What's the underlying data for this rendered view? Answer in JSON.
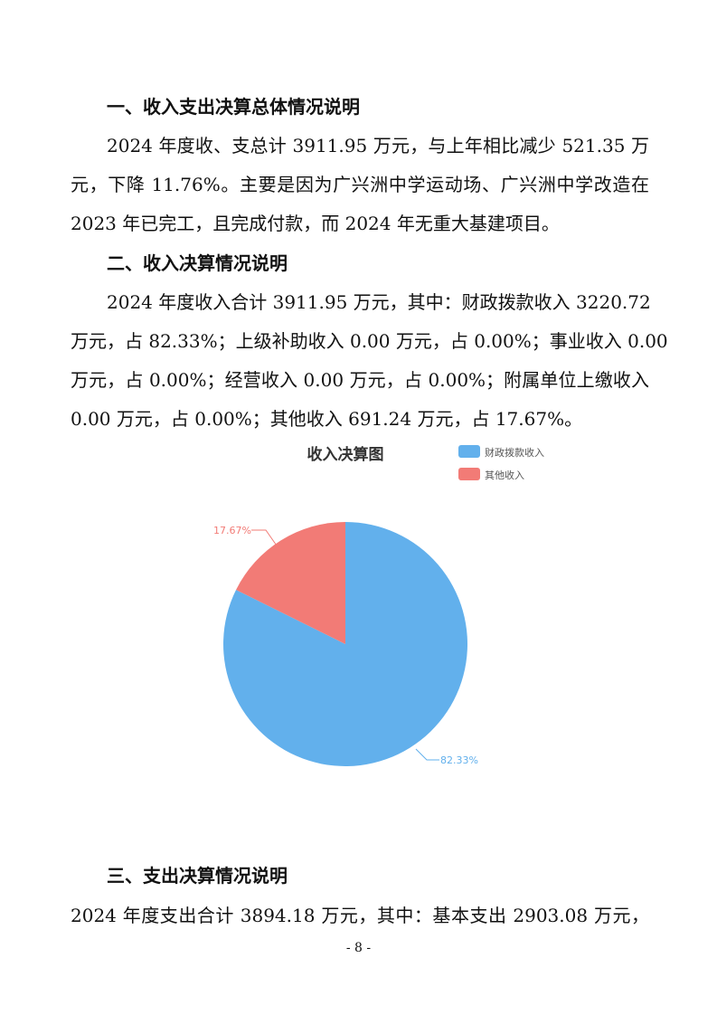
{
  "section1": {
    "heading": "一、收入支出决算总体情况说明",
    "lines": [
      "2024 年度收、支总计 3911.95 万元，与上年相比减少 521.35 万",
      "元，下降 11.76%。主要是因为广兴洲中学运动场、广兴洲中学改造在",
      "2023 年已完工，且完成付款，而 2024 年无重大基建项目。"
    ]
  },
  "section2": {
    "heading": "二、收入决算情况说明",
    "lines": [
      "2024 年度收入合计 3911.95 万元，其中：财政拨款收入 3220.72",
      "万元，占 82.33%；上级补助收入 0.00 万元，占 0.00%；事业收入 0.00",
      "万元，占 0.00%；经营收入 0.00 万元，占 0.00%；附属单位上缴收入",
      "0.00 万元，占 0.00%；其他收入 691.24 万元，占 17.67%。"
    ]
  },
  "chart_data": {
    "type": "pie",
    "title": "收入决算图",
    "legend_position": "top-right",
    "categories": [
      "财政拨款收入",
      "其他收入"
    ],
    "values": [
      82.33,
      17.67
    ],
    "labels": [
      "82.33%",
      "17.67%"
    ],
    "colors": [
      "#62b0ec",
      "#f27b76"
    ]
  },
  "section3": {
    "heading": "三、支出决算情况说明",
    "lines": [
      "2024 年度支出合计 3894.18 万元，其中：基本支出 2903.08 万元，"
    ]
  },
  "page_number": "- 8 -"
}
